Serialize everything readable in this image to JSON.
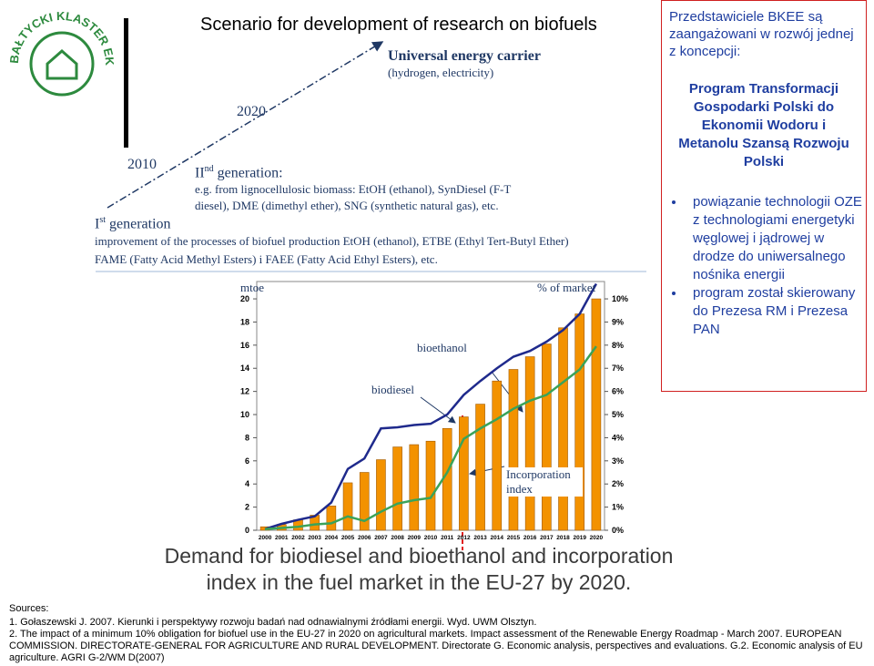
{
  "logo": {
    "text": "BAŁTYCKI KLASTER EKOENERGETYCZNY"
  },
  "header": {
    "title": "Scenario for development of research on biofuels"
  },
  "timeline": {
    "year_2010": "2010",
    "year_2020": "2020",
    "carrier": "Universal energy carrier",
    "carrier_note": "(hydrogen, electricity)",
    "second_gen": {
      "numeral": "II",
      "suffix": "nd",
      "label": "generation:",
      "text": "e.g. from lignocellulosic biomass: EtOH (ethanol), SynDiesel (F-T diesel), DME (dimethyl ether), SNG (synthetic natural gas), etc."
    },
    "first_gen": {
      "numeral": "I",
      "suffix": "st",
      "label": "generation",
      "text": "improvement of the processes of biofuel production EtOH (ethanol), ETBE (Ethyl Tert-Butyl Ether) FAME (Fatty Acid Methyl Esters) i FAEE (Fatty Acid Ethyl Esters), etc."
    }
  },
  "chart_data": {
    "type": "bar-line",
    "title": "Demand for biodiesel and bioethanol and incorporation index in the fuel market in the EU-27 by 2020.",
    "y_label": "mtoe",
    "y2_label": "% of market",
    "categories": [
      "2000",
      "2001",
      "2002",
      "2003",
      "2004",
      "2005",
      "2006",
      "2007",
      "2008",
      "2009",
      "2010",
      "2011",
      "2012",
      "2013",
      "2014",
      "2015",
      "2016",
      "2017",
      "2018",
      "2019",
      "2020"
    ],
    "series": [
      {
        "name": "bioethanol",
        "kind": "bar",
        "color": "#f39200",
        "values": [
          0.3,
          0.5,
          0.9,
          1.3,
          2.1,
          4.1,
          5.0,
          6.1,
          7.2,
          7.4,
          7.7,
          8.8,
          9.8,
          10.9,
          12.9,
          13.9,
          15.0,
          16.1,
          17.5,
          18.7,
          20.0
        ]
      },
      {
        "name": "biodiesel",
        "kind": "line",
        "color": "#1f2a8c",
        "values": [
          0.1,
          0.55,
          0.9,
          1.2,
          2.4,
          5.3,
          6.2,
          8.8,
          8.9,
          9.1,
          9.2,
          10.0,
          11.7,
          12.9,
          14.0,
          15.0,
          15.5,
          16.3,
          17.3,
          18.7,
          21.3
        ]
      },
      {
        "name": "Incorporation index",
        "kind": "line",
        "axis": "y2",
        "color": "#3aa35a",
        "values": [
          0.05,
          0.1,
          0.15,
          0.25,
          0.3,
          0.6,
          0.4,
          0.8,
          1.15,
          1.3,
          1.4,
          2.5,
          3.95,
          4.4,
          4.8,
          5.25,
          5.6,
          5.85,
          6.4,
          6.95,
          7.95
        ]
      }
    ],
    "ylim": [
      0,
      21.5
    ],
    "yticks": [
      0,
      2,
      4,
      6,
      8,
      10,
      12,
      14,
      16,
      18,
      20
    ],
    "y2lim": [
      0,
      10.75
    ],
    "y2ticks": [
      {
        "value": 0,
        "label": "0%"
      },
      {
        "value": 1,
        "label": "1%"
      },
      {
        "value": 2,
        "label": "2%"
      },
      {
        "value": 3,
        "label": "3%"
      },
      {
        "value": 4,
        "label": "4%"
      },
      {
        "value": 5,
        "label": "5%"
      },
      {
        "value": 6,
        "label": "6%"
      },
      {
        "value": 7,
        "label": "7%"
      },
      {
        "value": 8,
        "label": "8%"
      },
      {
        "value": 9,
        "label": "9%"
      },
      {
        "value": 10,
        "label": "10%"
      }
    ]
  },
  "sidebar": {
    "intro": "Przedstawiciele BKEE są zaangażowani w rozwój jednej z koncepcji:",
    "heading": "Program Transformacji Gospodarki Polski do Ekonomii Wodoru i Metanolu Szansą Rozwoju Polski",
    "bullets": [
      "powiązanie technologii OZE z technologiami energetyki węglowej i jądrowej w drodze do uniwersalnego nośnika energii",
      "program został skierowany do Prezesa RM i Prezesa PAN"
    ]
  },
  "sources": {
    "label": "Sources:",
    "items": [
      "1. Gołaszewski J. 2007. Kierunki i perspektywy rozwoju badań nad odnawialnymi źródłami energii. Wyd. UWM Olsztyn.",
      "2. The impact of a minimum 10% obligation for biofuel use in the EU-27 in 2020 on agricultural markets. Impact assessment of the Renewable Energy Roadmap - March 2007. EUROPEAN COMMISSION. DIRECTORATE-GENERAL FOR AGRICULTURE AND RURAL DEVELOPMENT. Directorate G. Economic analysis, perspectives and evaluations. G.2. Economic analysis of EU agriculture. AGRI G-2/WM D(2007)"
    ]
  }
}
